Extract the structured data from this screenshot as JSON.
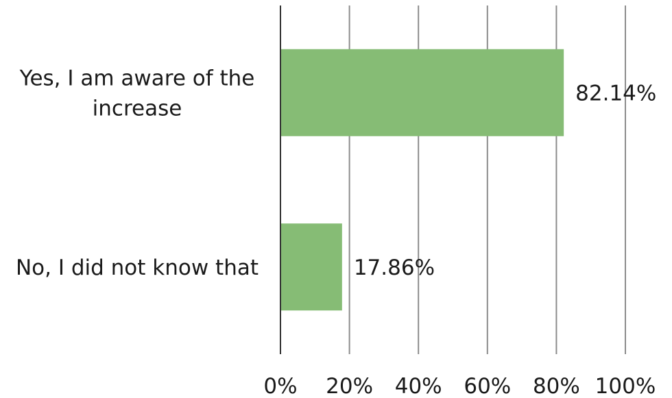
{
  "chart_data": {
    "type": "bar",
    "orientation": "horizontal",
    "categories": [
      [
        "Yes, I am aware of the",
        "increase"
      ],
      [
        "No, I did not know that"
      ]
    ],
    "values": [
      82.14,
      17.86
    ],
    "data_labels": [
      "82.14%",
      "17.86%"
    ],
    "xlim": [
      0,
      100
    ],
    "ticks": [
      0,
      20,
      40,
      60,
      80,
      100
    ],
    "tick_labels": [
      "0%",
      "20%",
      "40%",
      "60%",
      "80%",
      "100%"
    ],
    "grid": true,
    "legend": "none",
    "colors": {
      "bar": "#86bc75",
      "grid": "#8c8c8c",
      "axis": "#333333",
      "text": "#1a1a1a"
    }
  }
}
